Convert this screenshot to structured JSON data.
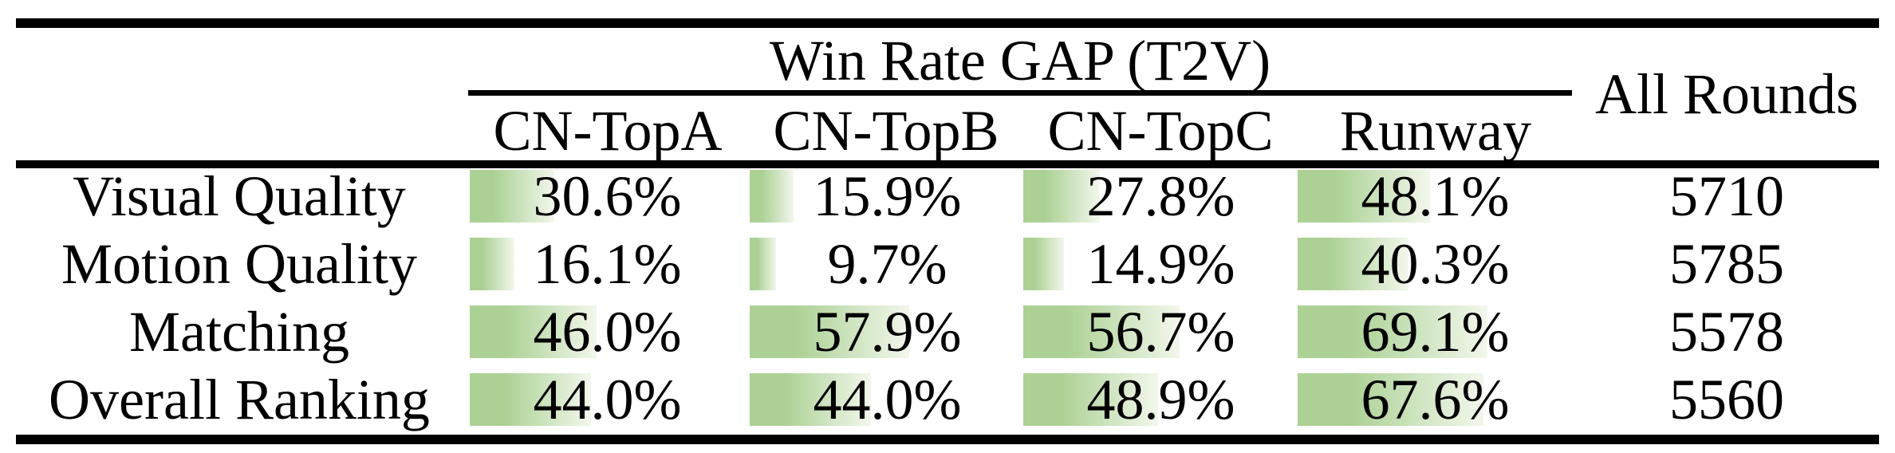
{
  "table": {
    "group_header": "Win Rate GAP (T2V)",
    "model_columns": [
      "CN-TopA",
      "CN-TopB",
      "CN-TopC",
      "Runway"
    ],
    "all_rounds_header": "All Rounds",
    "rows": [
      {
        "label": "Visual Quality",
        "win_rate_gap_pct": [
          30.6,
          15.9,
          27.8,
          48.1
        ],
        "all_rounds": "5710"
      },
      {
        "label": "Motion Quality",
        "win_rate_gap_pct": [
          16.1,
          9.7,
          14.9,
          40.3
        ],
        "all_rounds": "5785"
      },
      {
        "label": "Matching",
        "win_rate_gap_pct": [
          46.0,
          57.9,
          56.7,
          69.1
        ],
        "all_rounds": "5578"
      },
      {
        "label": "Overall Ranking",
        "win_rate_gap_pct": [
          44.0,
          44.0,
          48.9,
          67.6
        ],
        "all_rounds": "5560"
      }
    ],
    "colors": {
      "bar_green": "#abd194",
      "bar_fade": "#f2f7ec",
      "rule_black": "#000000",
      "background": "#ffffff"
    }
  },
  "chart_data": {
    "type": "table",
    "title": "Win Rate GAP (T2V)",
    "categories": [
      "Visual Quality",
      "Motion Quality",
      "Matching",
      "Overall Ranking"
    ],
    "series": [
      {
        "name": "CN-TopA",
        "values": [
          30.6,
          16.1,
          46.0,
          44.0
        ],
        "unit": "%"
      },
      {
        "name": "CN-TopB",
        "values": [
          15.9,
          9.7,
          57.9,
          44.0
        ],
        "unit": "%"
      },
      {
        "name": "CN-TopC",
        "values": [
          27.8,
          14.9,
          56.7,
          48.9
        ],
        "unit": "%"
      },
      {
        "name": "Runway",
        "values": [
          48.1,
          40.3,
          69.1,
          67.6
        ],
        "unit": "%"
      },
      {
        "name": "All Rounds",
        "values": [
          5710,
          5785,
          5578,
          5560
        ],
        "unit": "count"
      }
    ],
    "layout_hints": {
      "in_cell_bars": true,
      "bar_scale": "bar width = value percent of column width",
      "bar_range": [
        0,
        100
      ]
    }
  }
}
